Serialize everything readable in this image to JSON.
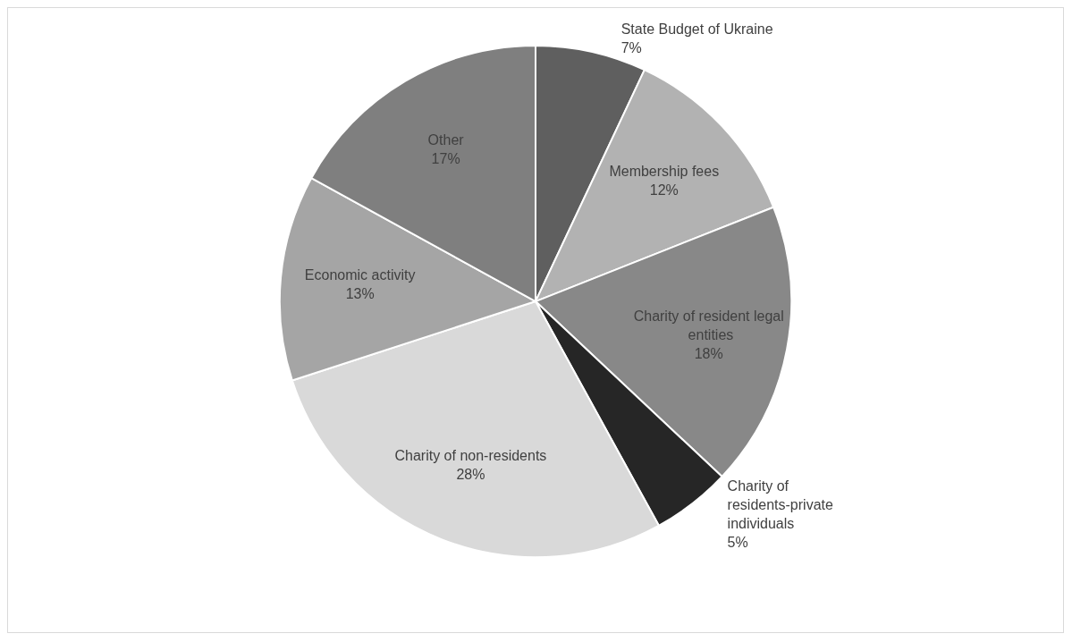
{
  "chart_data": {
    "type": "pie",
    "categories": [
      "State Budget of Ukraine",
      "Membership fees",
      "Charity of resident legal entities",
      "Charity of residents-private individuals",
      "Charity of non-residents",
      "Economic activity",
      "Other"
    ],
    "values": [
      7,
      12,
      18,
      5,
      28,
      13,
      17
    ],
    "value_labels": [
      "7%",
      "12%",
      "18%",
      "5%",
      "28%",
      "13%",
      "17%"
    ],
    "colors": [
      "#5f5f5f",
      "#b2b2b2",
      "#888888",
      "#262626",
      "#d9d9d9",
      "#a5a5a5",
      "#7f7f7f"
    ],
    "legend": false
  }
}
